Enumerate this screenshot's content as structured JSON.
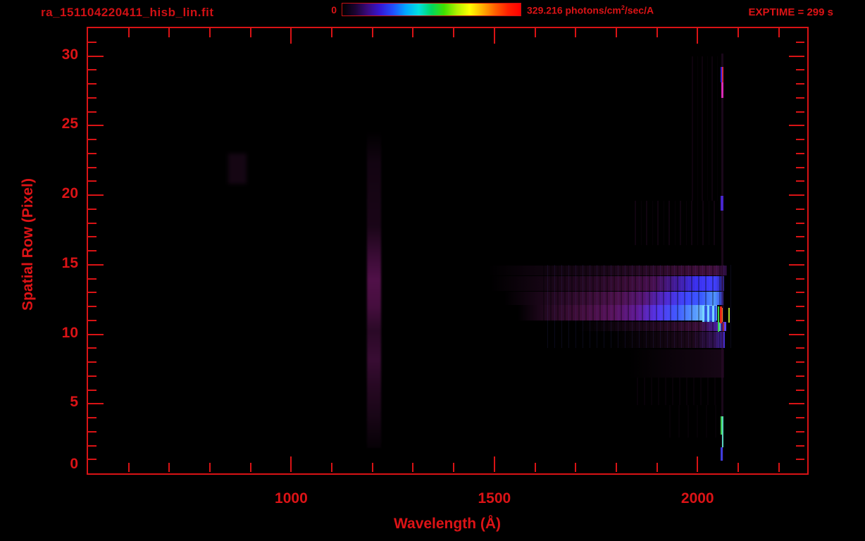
{
  "header": {
    "title": "ra_151104220411_hisb_lin.fit",
    "colorbar": {
      "min_label": "0",
      "max_label_prefix": "329.216 photons/cm",
      "max_label_sup": "2",
      "max_label_suffix": "/sec/A"
    },
    "exptime": "EXPTIME = 299 s"
  },
  "chart_data": {
    "type": "heatmap",
    "title": "ra_151104220411_hisb_lin.fit",
    "xlabel": "Wavelength (Å)",
    "ylabel": "Spatial Row (Pixel)",
    "x_range": [
      500,
      2270
    ],
    "y_range": [
      0,
      32
    ],
    "x_major_ticks": [
      1000,
      1500,
      2000
    ],
    "x_minor_step": 100,
    "x_minor_start": 600,
    "x_minor_end": 2200,
    "y_major_ticks": [
      0,
      5,
      10,
      15,
      20,
      25,
      30
    ],
    "y_minor_step": 1,
    "grid": false,
    "legend": "none",
    "accent_color": "#dc1316",
    "background_color": "#000000",
    "colorbar": {
      "min": 0,
      "max": 329.216,
      "units": "photons/cm²/sec/A",
      "colormap": [
        "#000000",
        "#1a0430",
        "#3a0a80",
        "#3418d8",
        "#2050ff",
        "#00a8ff",
        "#00e0e0",
        "#00d860",
        "#40e000",
        "#b0f000",
        "#ffff00",
        "#ffb000",
        "#ff6000",
        "#ff2000",
        "#ff0000"
      ]
    },
    "annotations": {
      "exposure_time_s": 299,
      "airglow_line_wavelength_A": 1216,
      "source_spectrum_rows": [
        9,
        15
      ],
      "bright_emission_line_wavelength_A": 2061
    },
    "features": [
      {
        "name": "lyman-alpha-stripe",
        "x0": 1186,
        "x1": 1222,
        "r0": 1.8,
        "r1": 24.6,
        "blur": 1.2,
        "bg": "linear-gradient(180deg, rgba(36,8,33,0) 0%, rgba(40,9,37,0.45) 10%, rgba(46,10,42,0.55) 30%, rgba(66,13,60,0.9) 40%, rgba(80,16,72,1) 47%, rgba(74,15,66,0.95) 55%, rgba(56,12,51,0.75) 63%, rgba(66,14,60,0.85) 72%, rgba(56,12,50,0.7) 80%, rgba(44,10,40,0.55) 90%, rgba(30,7,28,0.2) 100%)"
      },
      {
        "name": "faint-blob",
        "x0": 845,
        "x1": 890,
        "r0": 20.8,
        "r1": 23.0,
        "bg": "rgba(26,7,24,0.8)",
        "blur": 3
      },
      {
        "name": "spectrum-band-row14",
        "x0": 1485,
        "x1": 2072,
        "r0": 14.2,
        "r1": 14.95,
        "bg": "linear-gradient(90deg, rgba(28,6,26,0) 0%, rgba(32,8,30,0.4) 18%, rgba(40,10,37,0.6) 45%, rgba(52,12,48,0.8) 68%, rgba(62,14,57,0.95) 85%, rgba(66,16,62,1) 95%, rgba(48,14,70,0.9) 100%)"
      },
      {
        "name": "spectrum-band-row13",
        "x0": 1492,
        "x1": 2065,
        "r0": 13.1,
        "r1": 14.18,
        "bg": "linear-gradient(90deg, rgba(32,7,29,0) 0%, rgba(38,9,35,0.5) 20%, rgba(50,11,46,0.75) 42%, rgba(62,13,57,0.92) 58%, rgba(72,16,80,1) 70%, rgba(66,28,160,1) 80%, rgba(58,48,238,1) 88%, rgba(64,64,255,1) 96%, rgba(48,40,160,0.9) 100%)"
      },
      {
        "name": "spectrum-band-row12",
        "x0": 1525,
        "x1": 2064,
        "r0": 12.1,
        "r1": 13.05,
        "bg": "linear-gradient(90deg, rgba(38,8,34,0) 0%, rgba(48,11,44,0.55) 16%, rgba(62,14,57,0.85) 36%, rgba(76,17,74,1) 52%, rgba(86,22,120,1) 64%, rgba(78,42,210,1) 74%, rgba(62,70,255,1) 83%, rgba(58,90,255,1) 90%, rgba(80,150,255,1) 96%, rgba(56,60,230,1) 100%)"
      },
      {
        "name": "spectrum-band-row11",
        "x0": 1558,
        "x1": 2048,
        "r0": 11.0,
        "r1": 12.08,
        "bg": "linear-gradient(90deg, rgba(42,9,38,0) 0%, rgba(54,12,49,0.6) 13%, rgba(70,15,63,0.95) 32%, rgba(88,19,92,1) 48%, rgba(96,26,150,1) 60%, rgba(84,52,235,1) 70%, rgba(64,90,255,1) 80%, rgba(84,150,255,1) 88%, rgba(120,200,255,1) 95%, rgba(100,170,255,1) 100%)"
      },
      {
        "name": "spectrum-band-row10",
        "x0": 1705,
        "x1": 2070,
        "r0": 10.2,
        "r1": 10.9,
        "bg": "linear-gradient(90deg, rgba(28,7,26,0) 0%, rgba(36,9,33,0.5) 28%, rgba(48,12,44,0.8) 60%, rgba(62,15,58,0.95) 82%, rgba(74,28,160,1) 94%, rgba(96,70,255,1) 100%)"
      },
      {
        "name": "spectrum-band-row9",
        "x0": 1790,
        "x1": 2068,
        "r0": 9.0,
        "r1": 10.16,
        "bg": "linear-gradient(90deg, rgba(24,6,22,0) 0%, rgba(30,8,28,0.45) 38%, rgba(40,11,38,0.7) 72%, rgba(54,20,96,0.9) 92%, rgba(70,44,210,1) 100%)"
      },
      {
        "name": "spectrum-band-row8",
        "x0": 1830,
        "x1": 2066,
        "r0": 6.9,
        "r1": 8.9,
        "bg": "linear-gradient(90deg, rgba(20,5,19,0) 0%, rgba(24,6,22,0.4) 40%, rgba(30,8,28,0.55) 75%, rgba(36,10,34,0.65) 100%)"
      },
      {
        "name": "spectrum-striations",
        "x0": 1620,
        "x1": 2082,
        "r0": 9.0,
        "r1": 15.0,
        "bg": "repeating-linear-gradient(90deg, rgba(0,0,0,0.32) 0px, rgba(0,0,0,0.32) 2px, rgba(0,0,0,0) 2px, rgba(0,0,0,0) 6px, rgba(100,100,255,0.10) 6px, rgba(100,100,255,0.10) 7px, rgba(0,0,0,0) 7px, rgba(0,0,0,0) 10px)"
      },
      {
        "name": "upper-striations",
        "x0": 1845,
        "x1": 2056,
        "r0": 16.4,
        "r1": 19.6,
        "op": 0.85,
        "bg": "repeating-linear-gradient(90deg, rgba(38,9,36,0.5) 0px, rgba(38,9,36,0.5) 2px, rgba(0,0,0,0) 2px, rgba(0,0,0,0) 9px, rgba(28,7,26,0.35) 9px, rgba(28,7,26,0.35) 10px, rgba(0,0,0,0) 10px, rgba(0,0,0,0) 16px)"
      },
      {
        "name": "upper-right-striations",
        "x0": 1985,
        "x1": 2056,
        "r0": 19.6,
        "r1": 30.0,
        "op": 0.8,
        "bg": "repeating-linear-gradient(90deg, rgba(34,8,32,0.5) 0px, rgba(34,8,32,0.5) 2px, rgba(0,0,0,0) 2px, rgba(0,0,0,0) 8px, rgba(26,6,24,0.3) 8px, rgba(26,6,24,0.3) 9px, rgba(0,0,0,0) 9px, rgba(0,0,0,0) 14px)"
      },
      {
        "name": "lower-striations",
        "x0": 1850,
        "x1": 2056,
        "r0": 4.9,
        "r1": 6.9,
        "op": 0.7,
        "bg": "repeating-linear-gradient(90deg, rgba(30,7,28,0.4) 0px, rgba(30,7,28,0.4) 2px, rgba(0,0,0,0) 2px, rgba(0,0,0,0) 10px)"
      },
      {
        "name": "lower-sparse-striations",
        "x0": 1930,
        "x1": 2054,
        "r0": 2.6,
        "r1": 4.9,
        "op": 0.55,
        "bg": "repeating-linear-gradient(90deg, rgba(28,7,26,0.4) 0px, rgba(28,7,26,0.4) 2px, rgba(0,0,0,0) 2px, rgba(0,0,0,0) 13px)"
      },
      {
        "name": "emission-line-base",
        "x0": 2058,
        "x1": 2064,
        "r0": 0.9,
        "r1": 30.2,
        "bg": "rgba(44,11,44,0.6)"
      },
      {
        "name": "knot-blue-row28",
        "x0": 2057,
        "x1": 2060,
        "r0": 28.1,
        "r1": 29.2,
        "bg": "rgba(62,34,232,0.95)"
      },
      {
        "name": "knot-red-row28",
        "x0": 2061,
        "x1": 2064,
        "r0": 28.1,
        "r1": 29.2,
        "bg": "rgba(235,45,70,0.9)"
      },
      {
        "name": "knot-magenta-row27",
        "x0": 2058,
        "x1": 2064,
        "r0": 27.0,
        "r1": 28.1,
        "bg": "rgba(228,44,190,0.95)"
      },
      {
        "name": "knot-blue-row19",
        "x0": 2057,
        "x1": 2063,
        "r0": 18.9,
        "r1": 19.95,
        "bg": "rgba(76,40,220,0.92)"
      },
      {
        "name": "peak-cyan-stripes",
        "x0": 2012,
        "x1": 2046,
        "r0": 10.9,
        "r1": 12.05,
        "bg": "repeating-linear-gradient(90deg, rgba(120,215,255,0.95) 0px, rgba(120,215,255,0.95) 3px, rgba(40,70,230,0.8) 3px, rgba(40,70,230,0.8) 7px)"
      },
      {
        "name": "peak-green-line",
        "x0": 2049,
        "x1": 2053,
        "r0": 10.2,
        "r1": 12.0,
        "bg": "rgba(60,215,70,0.97)"
      },
      {
        "name": "row10-cyan-line",
        "x0": 2054,
        "x1": 2056,
        "r0": 10.2,
        "r1": 10.85,
        "bg": "rgba(90,210,200,0.9)"
      },
      {
        "name": "peak-red-line",
        "x0": 2055,
        "x1": 2060,
        "r0": 10.8,
        "r1": 12.0,
        "bg": "rgba(238,42,24,0.98)"
      },
      {
        "name": "peak-orange-line",
        "x0": 2060,
        "x1": 2062,
        "r0": 10.9,
        "r1": 11.9,
        "bg": "rgba(255,150,40,0.95)"
      },
      {
        "name": "peak-darkred-line",
        "x0": 2062,
        "x1": 2066,
        "r0": 10.2,
        "r1": 10.85,
        "bg": "rgba(170,40,30,0.85)"
      },
      {
        "name": "peak-yellowgreen-line",
        "x0": 2076,
        "x1": 2079,
        "r0": 10.85,
        "r1": 11.9,
        "bg": "rgba(185,225,50,0.95)"
      },
      {
        "name": "knot-green-row3",
        "x0": 2056,
        "x1": 2060,
        "r0": 2.8,
        "r1": 4.1,
        "bg": "rgba(66,212,86,0.97)"
      },
      {
        "name": "knot-cyan-row3",
        "x0": 2060,
        "x1": 2063,
        "r0": 1.85,
        "r1": 4.1,
        "bg": "rgba(92,222,196,0.95)"
      },
      {
        "name": "knot-blue-row1",
        "x0": 2056,
        "x1": 2062,
        "r0": 0.9,
        "r1": 1.9,
        "bg": "rgba(64,64,232,0.95)"
      }
    ]
  }
}
